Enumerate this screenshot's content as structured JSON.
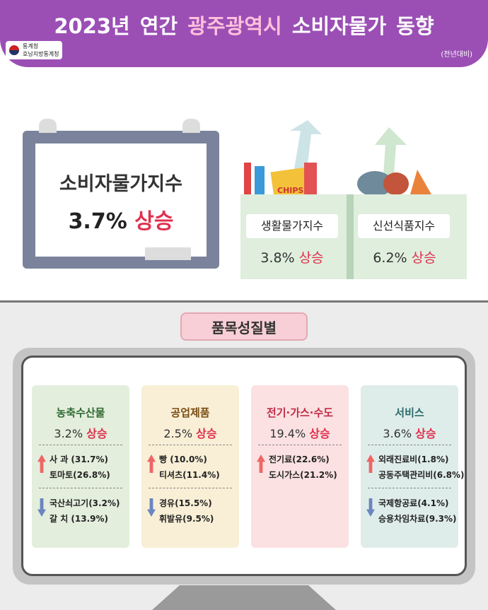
{
  "header": {
    "title": {
      "prefix": "2023년 연간",
      "highlight": "광주광역시",
      "suffix": "소비자물가 동향"
    },
    "logo": {
      "agency": "통계청",
      "office": "호남지방통계청"
    },
    "note": "(전년대비)"
  },
  "main": {
    "label": "소비자물가지수",
    "value": "3.7%",
    "change": "상승"
  },
  "sub": [
    {
      "label": "생활물가지수",
      "value": "3.8%",
      "change": "상승",
      "icon": "CHIPS"
    },
    {
      "label": "신선식품지수",
      "value": "6.2%",
      "change": "상승"
    }
  ],
  "section": {
    "title": "품목성질별"
  },
  "cards": [
    {
      "title": "농축수산물",
      "value": "3.2%",
      "change": "상승",
      "up": [
        "사 과 (31.7%)",
        "토마토(26.8%)"
      ],
      "down": [
        "국산쇠고기(3.2%)",
        "갈 치 (13.9%)"
      ]
    },
    {
      "title": "공업제품",
      "value": "2.5%",
      "change": "상승",
      "up": [
        "빵 (10.0%)",
        "티셔츠(11.4%)"
      ],
      "down": [
        "경유(15.5%)",
        "휘발유(9.5%)"
      ]
    },
    {
      "title": "전기·가스·수도",
      "value": "19.4%",
      "change": "상승",
      "up": [
        "전기료(22.6%)",
        "도시가스(21.2%)"
      ],
      "down": []
    },
    {
      "title": "서비스",
      "value": "3.6%",
      "change": "상승",
      "up": [
        "외래진료비(1.8%)",
        "공동주택관리비(6.8%)"
      ],
      "down": [
        "국제항공료(4.1%)",
        "승용차임차료(9.3%)"
      ]
    }
  ]
}
